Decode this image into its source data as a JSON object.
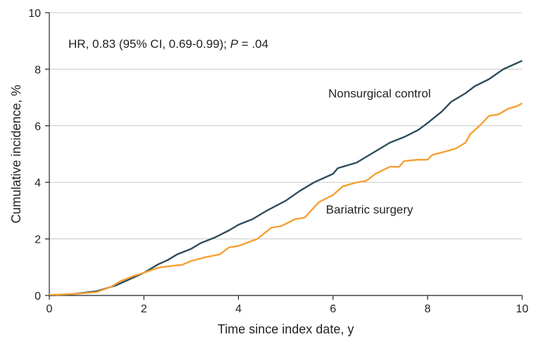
{
  "chart_data": {
    "type": "line",
    "title": "",
    "xlabel": "Time since index date, y",
    "ylabel": "Cumulative incidence, %",
    "xlim": [
      0,
      10
    ],
    "ylim": [
      0,
      10
    ],
    "xticks": [
      0,
      2,
      4,
      6,
      8,
      10
    ],
    "yticks": [
      0,
      2,
      4,
      6,
      8,
      10
    ],
    "grid": "horizontal",
    "annotation": {
      "prefix": "HR, 0.83 (95% CI, 0.69-0.99); ",
      "p_label": "P",
      "p_value": " = .04"
    },
    "series": [
      {
        "name": "Nonsurgical control",
        "color": "#2f4d5c",
        "label_anchor": [
          5.9,
          7.0
        ],
        "points": [
          [
            0,
            0
          ],
          [
            0.5,
            0.05
          ],
          [
            1.0,
            0.15
          ],
          [
            1.4,
            0.35
          ],
          [
            1.8,
            0.65
          ],
          [
            2.0,
            0.8
          ],
          [
            2.3,
            1.1
          ],
          [
            2.5,
            1.25
          ],
          [
            2.7,
            1.45
          ],
          [
            3.0,
            1.65
          ],
          [
            3.2,
            1.85
          ],
          [
            3.5,
            2.05
          ],
          [
            3.8,
            2.3
          ],
          [
            4.0,
            2.5
          ],
          [
            4.3,
            2.7
          ],
          [
            4.6,
            3.0
          ],
          [
            5.0,
            3.35
          ],
          [
            5.3,
            3.7
          ],
          [
            5.6,
            4.0
          ],
          [
            6.0,
            4.3
          ],
          [
            6.1,
            4.5
          ],
          [
            6.5,
            4.7
          ],
          [
            7.0,
            5.2
          ],
          [
            7.2,
            5.4
          ],
          [
            7.5,
            5.6
          ],
          [
            7.8,
            5.85
          ],
          [
            8.0,
            6.1
          ],
          [
            8.3,
            6.5
          ],
          [
            8.5,
            6.85
          ],
          [
            8.8,
            7.15
          ],
          [
            9.0,
            7.4
          ],
          [
            9.3,
            7.65
          ],
          [
            9.6,
            8.0
          ],
          [
            9.8,
            8.15
          ],
          [
            10.0,
            8.3
          ]
        ]
      },
      {
        "name": "Bariatric surgery",
        "color": "#f5a033",
        "label_anchor": [
          5.85,
          2.9
        ],
        "points": [
          [
            0,
            0.02
          ],
          [
            0.5,
            0.05
          ],
          [
            1.0,
            0.12
          ],
          [
            1.3,
            0.3
          ],
          [
            1.5,
            0.5
          ],
          [
            1.8,
            0.7
          ],
          [
            2.0,
            0.8
          ],
          [
            2.3,
            0.98
          ],
          [
            2.6,
            1.05
          ],
          [
            2.8,
            1.08
          ],
          [
            3.0,
            1.22
          ],
          [
            3.3,
            1.35
          ],
          [
            3.6,
            1.45
          ],
          [
            3.8,
            1.7
          ],
          [
            4.0,
            1.75
          ],
          [
            4.4,
            2.0
          ],
          [
            4.7,
            2.4
          ],
          [
            4.9,
            2.45
          ],
          [
            5.2,
            2.7
          ],
          [
            5.4,
            2.75
          ],
          [
            5.7,
            3.3
          ],
          [
            6.0,
            3.55
          ],
          [
            6.2,
            3.85
          ],
          [
            6.5,
            4.0
          ],
          [
            6.7,
            4.05
          ],
          [
            6.9,
            4.3
          ],
          [
            7.2,
            4.55
          ],
          [
            7.4,
            4.55
          ],
          [
            7.5,
            4.75
          ],
          [
            7.8,
            4.8
          ],
          [
            8.0,
            4.8
          ],
          [
            8.1,
            4.97
          ],
          [
            8.4,
            5.1
          ],
          [
            8.6,
            5.2
          ],
          [
            8.8,
            5.4
          ],
          [
            8.9,
            5.7
          ],
          [
            9.1,
            6.0
          ],
          [
            9.3,
            6.35
          ],
          [
            9.5,
            6.4
          ],
          [
            9.7,
            6.6
          ],
          [
            9.9,
            6.7
          ],
          [
            10.0,
            6.8
          ]
        ]
      }
    ]
  }
}
